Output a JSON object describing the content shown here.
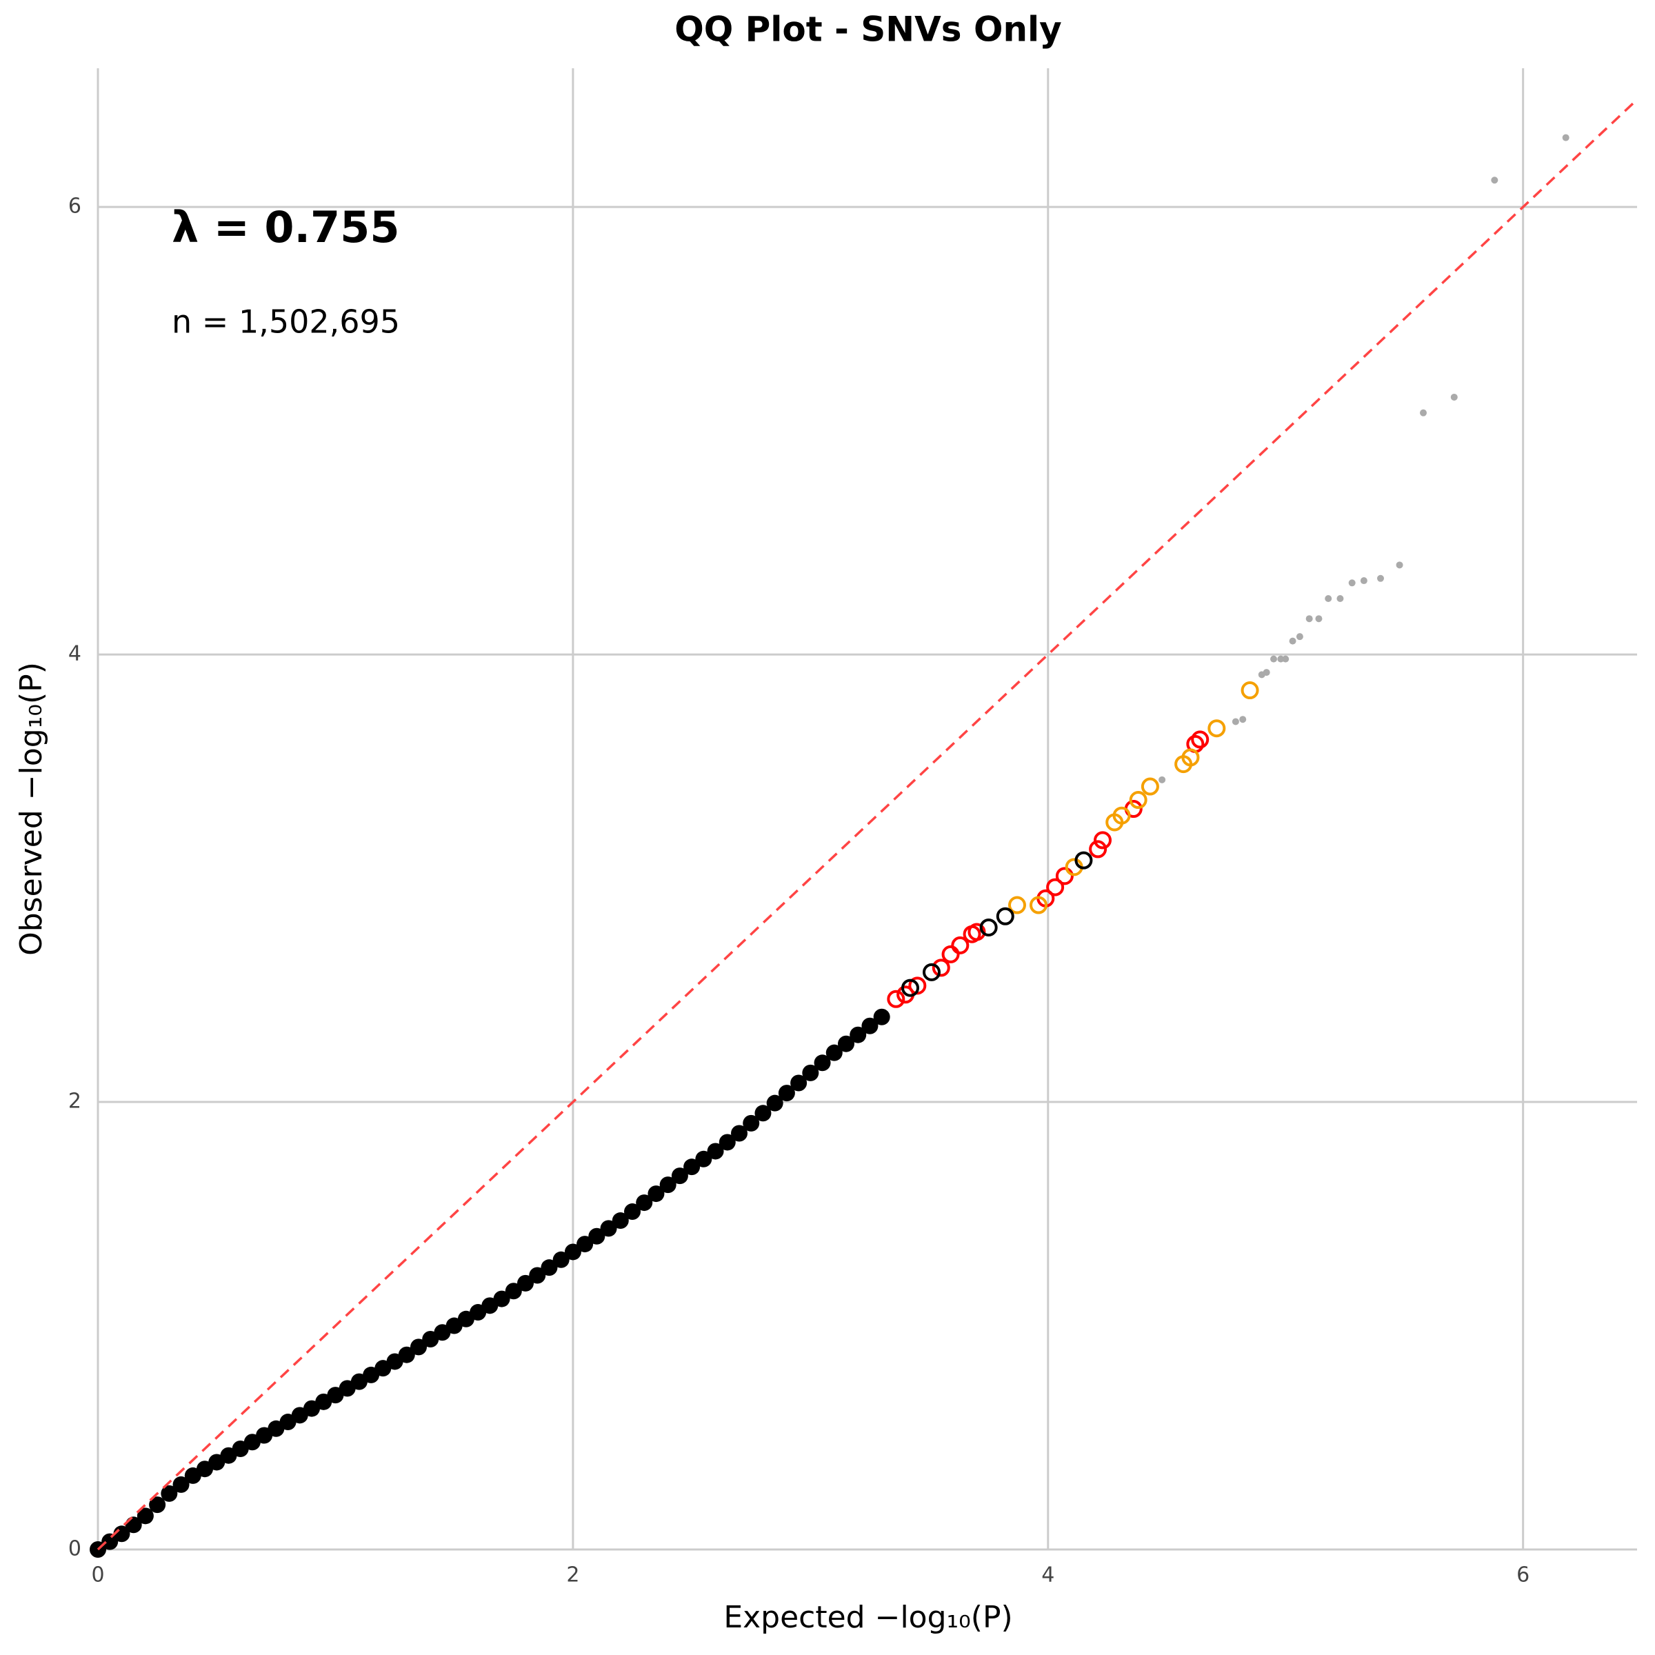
{
  "chart_data": {
    "type": "scatter",
    "title": "QQ Plot - SNVs Only",
    "xlabel": "Expected −log₁₀(P)",
    "ylabel": "Observed −log₁₀(P)",
    "annotations": [
      "λ = 0.755",
      "n = 1,502,695"
    ],
    "xlim": [
      0,
      6.48
    ],
    "ylim": [
      0,
      6.62
    ],
    "xticks": [
      0,
      2,
      4,
      6
    ],
    "yticks": [
      0,
      2,
      4,
      6
    ],
    "grid": true,
    "reference_line": {
      "color": "#ff4444",
      "dashed": true
    },
    "series": [
      {
        "color": "#000000",
        "marker": "dot",
        "x": [
          0,
          0.05,
          0.1,
          0.15,
          0.2,
          0.25,
          0.3,
          0.35,
          0.4,
          0.45,
          0.5,
          0.55,
          0.6,
          0.65,
          0.7,
          0.75,
          0.8,
          0.85,
          0.9,
          0.95,
          1,
          1.05,
          1.1,
          1.15,
          1.2,
          1.25,
          1.3,
          1.35,
          1.4,
          1.45,
          1.5,
          1.55,
          1.6,
          1.65,
          1.7,
          1.75,
          1.8,
          1.85,
          1.9,
          1.95,
          2,
          2.05,
          2.1,
          2.15,
          2.2,
          2.25,
          2.3,
          2.35,
          2.4,
          2.45,
          2.5,
          2.55,
          2.6,
          2.65,
          2.7,
          2.75,
          2.8,
          2.85,
          2.9,
          2.95,
          3,
          3.05,
          3.1,
          3.15,
          3.2,
          3.25,
          3.3
        ],
        "values": [
          0,
          0.035,
          0.07,
          0.11,
          0.15,
          0.2,
          0.25,
          0.29,
          0.33,
          0.36,
          0.39,
          0.42,
          0.45,
          0.48,
          0.51,
          0.54,
          0.57,
          0.6,
          0.63,
          0.66,
          0.69,
          0.72,
          0.75,
          0.78,
          0.81,
          0.84,
          0.87,
          0.905,
          0.94,
          0.97,
          1,
          1.03,
          1.06,
          1.09,
          1.12,
          1.155,
          1.19,
          1.225,
          1.26,
          1.295,
          1.33,
          1.365,
          1.4,
          1.435,
          1.47,
          1.51,
          1.55,
          1.59,
          1.63,
          1.67,
          1.71,
          1.745,
          1.78,
          1.82,
          1.86,
          1.905,
          1.95,
          1.995,
          2.04,
          2.085,
          2.13,
          2.175,
          2.22,
          2.26,
          2.3,
          2.34,
          2.38
        ]
      },
      {
        "color": "#aaaaaa",
        "marker": "dot",
        "x": [
          4.48,
          4.79,
          4.82,
          4.9,
          4.92,
          4.95,
          4.98,
          5.0,
          5.03,
          5.06,
          5.1,
          5.14,
          5.18,
          5.23,
          5.28,
          5.33,
          5.4,
          5.48,
          5.58,
          5.71,
          5.88,
          6.18
        ],
        "values": [
          3.44,
          3.7,
          3.71,
          3.91,
          3.92,
          3.98,
          3.98,
          3.98,
          4.06,
          4.08,
          4.16,
          4.16,
          4.25,
          4.25,
          4.32,
          4.33,
          4.34,
          4.4,
          5.08,
          5.15,
          6.12,
          6.31
        ]
      },
      {
        "color": "#ff0000",
        "marker": "ring",
        "x": [
          3.36,
          3.4,
          3.45,
          3.55,
          3.59,
          3.63,
          3.68,
          3.7,
          3.99,
          4.03,
          4.07,
          4.21,
          4.23,
          4.36,
          4.62,
          4.64
        ],
        "values": [
          2.46,
          2.48,
          2.52,
          2.6,
          2.66,
          2.7,
          2.75,
          2.76,
          2.91,
          2.96,
          3.01,
          3.13,
          3.17,
          3.31,
          3.6,
          3.62
        ]
      },
      {
        "color": "#f5a000",
        "marker": "ring",
        "x": [
          3.87,
          3.96,
          4.11,
          4.28,
          4.31,
          4.38,
          4.43,
          4.57,
          4.6,
          4.71,
          4.85
        ],
        "values": [
          2.88,
          2.88,
          3.05,
          3.25,
          3.28,
          3.35,
          3.41,
          3.51,
          3.54,
          3.67,
          3.84
        ]
      },
      {
        "color": "#000000",
        "marker": "ring",
        "x": [
          3.42,
          3.51,
          3.75,
          3.82,
          4.15
        ],
        "values": [
          2.51,
          2.58,
          2.78,
          2.83,
          3.08
        ]
      }
    ]
  }
}
